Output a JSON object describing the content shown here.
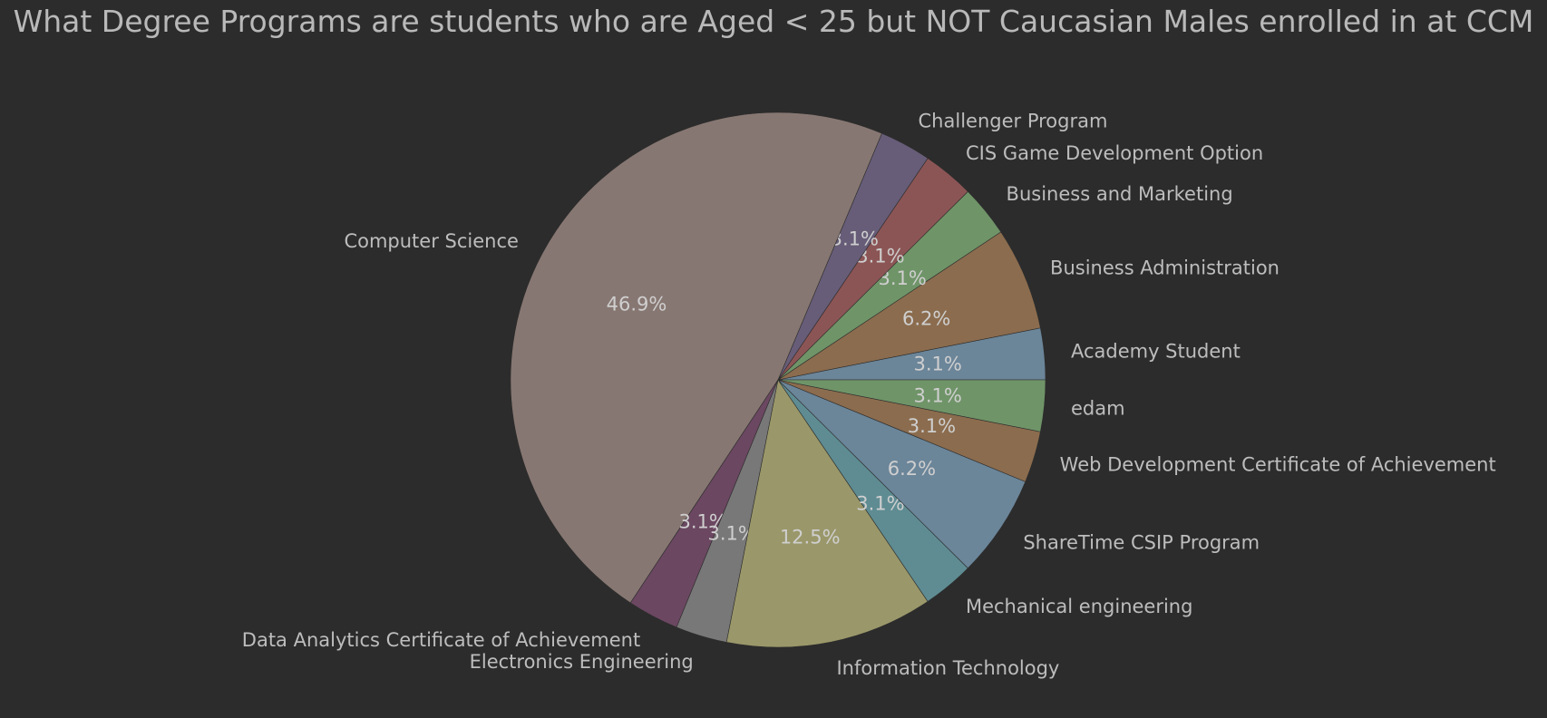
{
  "chart_data": {
    "type": "pie",
    "title": "What Degree Programs are students who are Aged < 25 but NOT Caucasian Males enrolled in at CCM",
    "start_angle_deg": 0,
    "direction": "counterclockwise",
    "slices": [
      {
        "label": "Academy Student",
        "value": 3.1,
        "pct_label": "3.1%",
        "color": "#6b8599"
      },
      {
        "label": "Business Administration",
        "value": 6.2,
        "pct_label": "6.2%",
        "color": "#8b6c4e"
      },
      {
        "label": "Business and Marketing",
        "value": 3.1,
        "pct_label": "3.1%",
        "color": "#6f9468"
      },
      {
        "label": "CIS Game Development Option",
        "value": 3.1,
        "pct_label": "3.1%",
        "color": "#8c5555"
      },
      {
        "label": "Challenger Program",
        "value": 3.1,
        "pct_label": "3.1%",
        "color": "#675d78"
      },
      {
        "label": "Computer Science",
        "value": 46.9,
        "pct_label": "46.9%",
        "color": "#877772"
      },
      {
        "label": "Data Analytics Certificate of Achievement",
        "value": 3.1,
        "pct_label": "3.1%",
        "color": "#6b4761"
      },
      {
        "label": "Electronics Engineering",
        "value": 3.1,
        "pct_label": "3.1%",
        "color": "#787878"
      },
      {
        "label": "Information Technology",
        "value": 12.5,
        "pct_label": "12.5%",
        "color": "#9a976a"
      },
      {
        "label": "Mechanical engineering",
        "value": 3.1,
        "pct_label": "3.1%",
        "color": "#5e8c92"
      },
      {
        "label": "ShareTime CSIP Program",
        "value": 6.2,
        "pct_label": "6.2%",
        "color": "#6b8599"
      },
      {
        "label": "Web Development Certificate of Achievement",
        "value": 3.1,
        "pct_label": "3.1%",
        "color": "#8b6c4e"
      },
      {
        "label": "edam",
        "value": 3.1,
        "pct_label": "3.1%",
        "color": "#6f9468"
      }
    ]
  }
}
